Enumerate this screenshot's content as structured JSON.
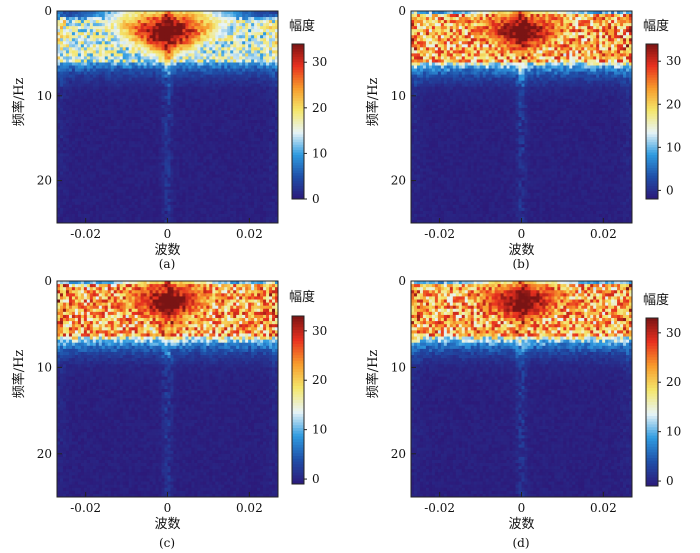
{
  "chart_data": [
    {
      "type": "heatmap",
      "panel_label": "(a)",
      "xlabel": "波数",
      "ylabel": "频率/Hz",
      "colorbar_label": "幅度",
      "xlim": [
        -0.027,
        0.027
      ],
      "ylim": [
        25,
        0
      ],
      "xticks": [
        -0.02,
        0,
        0.02
      ],
      "xtick_labels": [
        "-0.02",
        "0",
        "0.02"
      ],
      "yticks": [
        0,
        10,
        20
      ],
      "ytick_labels": [
        "0",
        "10",
        "20"
      ],
      "colorbar_range": [
        0,
        34
      ],
      "colorbar_ticks": [
        0,
        10,
        20,
        30
      ],
      "colorbar_tick_labels": [
        "0",
        "10",
        "20",
        "30"
      ],
      "colormap": [
        "#2c1a7a",
        "#1f4fa8",
        "#2f9be0",
        "#e8f4f7",
        "#f4e66b",
        "#f79b2c",
        "#e8301f",
        "#7a1414"
      ],
      "energy_band_hz": [
        1,
        6
      ],
      "cone_peak_hz": 2.5
    },
    {
      "type": "heatmap",
      "panel_label": "(b)",
      "xlabel": "波数",
      "ylabel": "频率/Hz",
      "colorbar_label": "幅度",
      "xlim": [
        -0.027,
        0.027
      ],
      "ylim": [
        25,
        0
      ],
      "xticks": [
        -0.02,
        0,
        0.02
      ],
      "xtick_labels": [
        "-0.02",
        "0",
        "0.02"
      ],
      "yticks": [
        0,
        10,
        20
      ],
      "ytick_labels": [
        "0",
        "10",
        "20"
      ],
      "colorbar_range": [
        -2,
        34
      ],
      "colorbar_ticks": [
        0,
        10,
        20,
        30
      ],
      "colorbar_tick_labels": [
        "0",
        "10",
        "20",
        "30"
      ],
      "colormap": [
        "#2c1a7a",
        "#1f4fa8",
        "#2f9be0",
        "#e8f4f7",
        "#f4e66b",
        "#f79b2c",
        "#e8301f",
        "#7a1414"
      ],
      "energy_band_hz": [
        0.5,
        6
      ],
      "cone_peak_hz": 2.5
    },
    {
      "type": "heatmap",
      "panel_label": "(c)",
      "xlabel": "波数",
      "ylabel": "频率/Hz",
      "colorbar_label": "幅度",
      "xlim": [
        -0.027,
        0.027
      ],
      "ylim": [
        25,
        0
      ],
      "xticks": [
        -0.02,
        0,
        0.02
      ],
      "xtick_labels": [
        "-0.02",
        "0",
        "0.02"
      ],
      "yticks": [
        0,
        10,
        20
      ],
      "ytick_labels": [
        "0",
        "10",
        "20"
      ],
      "colorbar_range": [
        -1,
        33
      ],
      "colorbar_ticks": [
        0,
        10,
        20,
        30
      ],
      "colorbar_tick_labels": [
        "0",
        "10",
        "20",
        "30"
      ],
      "colormap": [
        "#2c1a7a",
        "#1f4fa8",
        "#2f9be0",
        "#e8f4f7",
        "#f4e66b",
        "#f79b2c",
        "#e8301f",
        "#7a1414"
      ],
      "energy_band_hz": [
        0.5,
        6.5
      ],
      "cone_peak_hz": 2.5
    },
    {
      "type": "heatmap",
      "panel_label": "(d)",
      "xlabel": "波数",
      "ylabel": "频率/Hz",
      "colorbar_label": "幅度",
      "xlim": [
        -0.027,
        0.027
      ],
      "ylim": [
        25,
        0
      ],
      "xticks": [
        -0.02,
        0,
        0.02
      ],
      "xtick_labels": [
        "-0.02",
        "0",
        "0.02"
      ],
      "yticks": [
        0,
        10,
        20
      ],
      "ytick_labels": [
        "0",
        "10",
        "20"
      ],
      "colorbar_range": [
        -1,
        33
      ],
      "colorbar_ticks": [
        0,
        10,
        20,
        30
      ],
      "colorbar_tick_labels": [
        "0",
        "10",
        "20",
        "30"
      ],
      "colormap": [
        "#2c1a7a",
        "#1f4fa8",
        "#2f9be0",
        "#e8f4f7",
        "#f4e66b",
        "#f79b2c",
        "#e8301f",
        "#7a1414"
      ],
      "energy_band_hz": [
        0.5,
        6.5
      ],
      "cone_peak_hz": 2.5
    }
  ]
}
